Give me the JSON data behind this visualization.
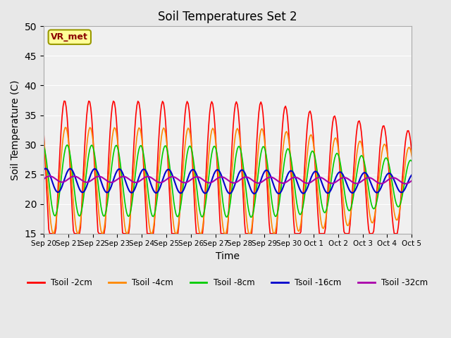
{
  "title": "Soil Temperatures Set 2",
  "xlabel": "Time",
  "ylabel": "Soil Temperature (C)",
  "ylim": [
    15,
    50
  ],
  "yticks": [
    15,
    20,
    25,
    30,
    35,
    40,
    45,
    50
  ],
  "background_color": "#e8e8e8",
  "plot_bg_color": "#f0f0f0",
  "annotation_text": "VR_met",
  "annotation_bg": "#ffff99",
  "annotation_border": "#999900",
  "annotation_text_color": "#8B0000",
  "series_colors": {
    "Tsoil -2cm": "#ff0000",
    "Tsoil -4cm": "#ff8800",
    "Tsoil -8cm": "#00cc00",
    "Tsoil -16cm": "#0000cc",
    "Tsoil -32cm": "#aa00aa"
  },
  "x_labels": [
    "Sep 20",
    "Sep 21",
    "Sep 22",
    "Sep 23",
    "Sep 24",
    "Sep 25",
    "Sep 26",
    "Sep 27",
    "Sep 28",
    "Sep 29",
    "Sep 30",
    "Oct 1",
    "Oct 2",
    "Oct 3",
    "Oct 4",
    "Oct 5"
  ],
  "x_tick_positions": [
    0,
    1,
    2,
    3,
    4,
    5,
    6,
    7,
    8,
    9,
    10,
    11,
    12,
    13,
    14,
    15
  ]
}
